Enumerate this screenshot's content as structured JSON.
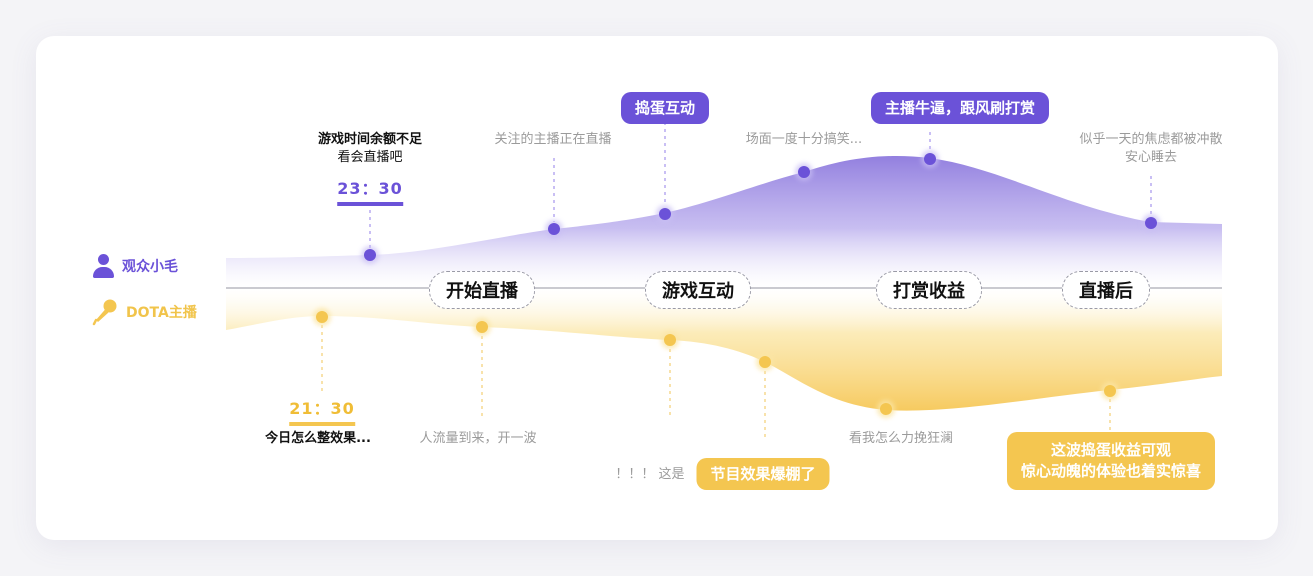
{
  "legend": {
    "viewer": {
      "label": "观众小毛",
      "icon": "person-icon",
      "color": "#6b52d8"
    },
    "streamer": {
      "label": "DOTA主播",
      "icon": "microphone-icon",
      "color": "#f4c650"
    }
  },
  "stages": [
    "开始直播",
    "游戏互动",
    "打赏收益",
    "直播后"
  ],
  "viewer": {
    "time": "23：30",
    "notes": [
      {
        "lines": [
          "游戏时间余额不足",
          "看会直播吧"
        ]
      },
      {
        "lines": [
          "关注的主播正在直播"
        ]
      },
      {
        "lines": [
          "场面一度十分搞笑..."
        ]
      },
      {
        "lines": [
          "似乎一天的焦虑都被冲散",
          "安心睡去"
        ]
      }
    ],
    "highlights": [
      "捣蛋互动",
      "主播牛逼，跟风刷打赏"
    ]
  },
  "streamer": {
    "time": "21：30",
    "notes": [
      {
        "lines": [
          "今日怎么整效果..."
        ]
      },
      {
        "lines": [
          "人流量到来，开一波"
        ]
      },
      {
        "lines": [
          "！！！ 这是"
        ]
      },
      {
        "lines": [
          "看我怎么力挽狂澜"
        ]
      }
    ],
    "highlights": [
      "节目效果爆棚了",
      "这波捣蛋收益可观",
      "惊心动魄的体验也着实惊喜"
    ]
  },
  "colors": {
    "viewer": "#6b52d8",
    "streamer": "#f4c650",
    "axis": "#b8b8c0"
  }
}
